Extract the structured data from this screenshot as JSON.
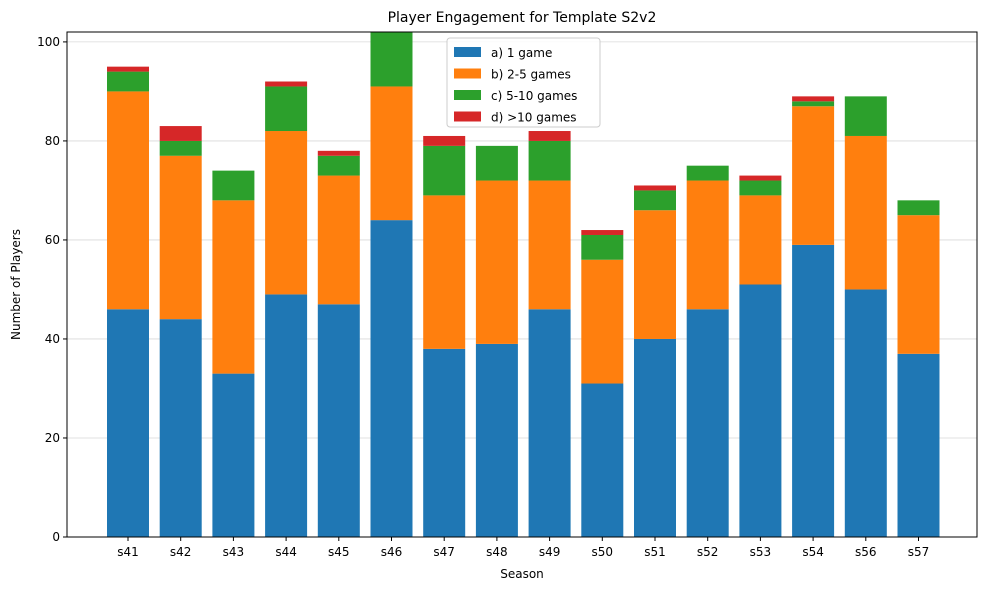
{
  "chart_data": {
    "type": "bar",
    "stacked": true,
    "title": "Player Engagement for Template S2v2",
    "xlabel": "Season",
    "ylabel": "Number of Players",
    "ylim": [
      0,
      102
    ],
    "yticks": [
      0,
      20,
      40,
      60,
      80,
      100
    ],
    "grid": "y",
    "legend_position": "top-center",
    "categories": [
      "s41",
      "s42",
      "s43",
      "s44",
      "s45",
      "s46",
      "s47",
      "s48",
      "s49",
      "s50",
      "s51",
      "s52",
      "s53",
      "s54",
      "s56",
      "s57"
    ],
    "series": [
      {
        "name": "a) 1 game",
        "color": "#1f77b4",
        "values": [
          46,
          44,
          33,
          49,
          47,
          64,
          38,
          39,
          46,
          31,
          40,
          46,
          51,
          59,
          50,
          37
        ]
      },
      {
        "name": "b) 2-5 games",
        "color": "#ff7f0e",
        "values": [
          44,
          33,
          35,
          33,
          26,
          27,
          31,
          33,
          26,
          25,
          26,
          26,
          18,
          28,
          31,
          28
        ]
      },
      {
        "name": "c) 5-10 games",
        "color": "#2ca02c",
        "values": [
          4,
          3,
          6,
          9,
          4,
          11,
          10,
          7,
          8,
          5,
          4,
          3,
          3,
          1,
          8,
          3
        ]
      },
      {
        "name": "d) >10 games",
        "color": "#d62728",
        "values": [
          1,
          3,
          0,
          1,
          1,
          0,
          2,
          0,
          2,
          1,
          1,
          0,
          1,
          1,
          0,
          0
        ]
      }
    ]
  }
}
